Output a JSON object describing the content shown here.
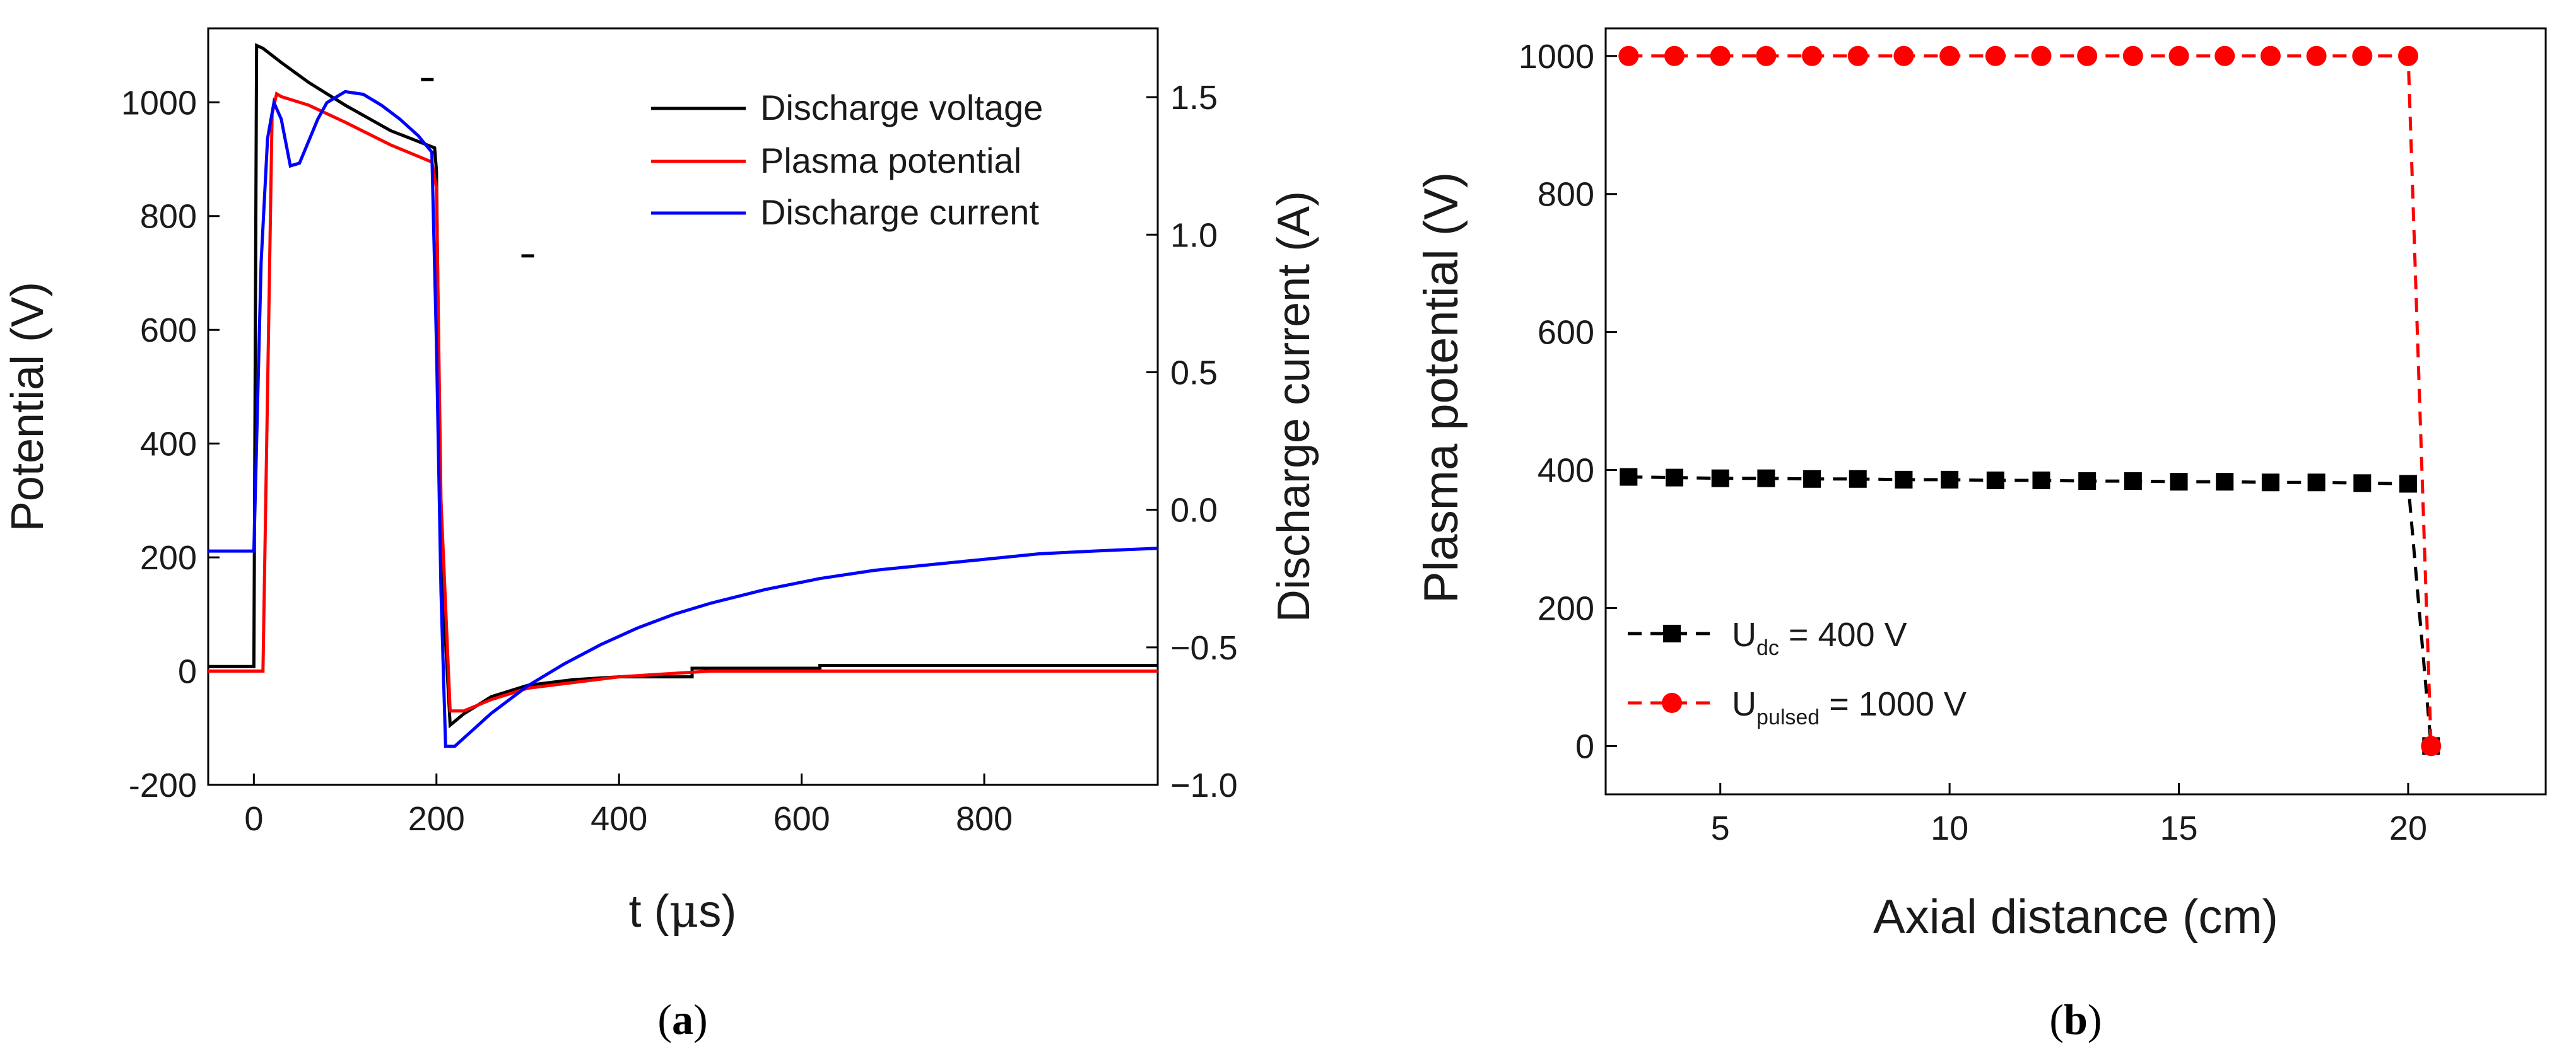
{
  "chart_data": [
    {
      "panel": "(a)",
      "type": "line",
      "xlabel_prefix": "t (",
      "xlabel_greek": "μ",
      "xlabel_suffix": "s)",
      "ylabel": "Potential (V)",
      "y2label": "Discharge current (A)",
      "xlim": [
        -50,
        990
      ],
      "ylim": [
        -200,
        1130
      ],
      "y2lim": [
        -1.0,
        1.75
      ],
      "x_ticks": [
        "0",
        "200",
        "400",
        "600",
        "800"
      ],
      "y_ticks": [
        "-200",
        "0",
        "200",
        "400",
        "600",
        "800",
        "1000"
      ],
      "y2_ticks": [
        "−1.0",
        "−0.5",
        "0.0",
        "0.5",
        "1.0",
        "1.5"
      ],
      "legend": [
        "Discharge voltage",
        "Plasma potential",
        "Discharge current"
      ],
      "legend_position": "top-right",
      "colors": [
        "#000000",
        "#ff0000",
        "#0000ff"
      ],
      "series": [
        {
          "name": "Discharge voltage",
          "axis": "left",
          "x": [
            -50,
            0,
            3,
            10,
            30,
            60,
            100,
            150,
            198,
            200,
            205,
            215,
            230,
            260,
            300,
            350,
            400,
            480,
            480,
            620,
            620,
            990
          ],
          "y": [
            8,
            8,
            1100,
            1095,
            1070,
            1035,
            995,
            950,
            920,
            880,
            200,
            -95,
            -75,
            -45,
            -25,
            -15,
            -10,
            -10,
            5,
            5,
            10,
            10
          ]
        },
        {
          "name": "Plasma potential",
          "axis": "left",
          "x": [
            -50,
            10,
            20,
            25,
            30,
            60,
            100,
            150,
            195,
            200,
            205,
            215,
            230,
            260,
            300,
            350,
            400,
            470,
            500,
            990
          ],
          "y": [
            0,
            0,
            980,
            1015,
            1010,
            995,
            965,
            925,
            895,
            850,
            300,
            -70,
            -70,
            -50,
            -30,
            -20,
            -10,
            -3,
            0,
            0
          ]
        },
        {
          "name": "Discharge current",
          "axis": "right",
          "x": [
            -50,
            0,
            8,
            15,
            22,
            30,
            40,
            50,
            60,
            70,
            80,
            100,
            120,
            140,
            160,
            180,
            195,
            200,
            205,
            210,
            220,
            240,
            260,
            280,
            300,
            340,
            380,
            420,
            460,
            500,
            560,
            620,
            680,
            740,
            800,
            860,
            920,
            990
          ],
          "y": [
            -0.15,
            -0.15,
            0.9,
            1.35,
            1.48,
            1.42,
            1.25,
            1.26,
            1.34,
            1.42,
            1.48,
            1.52,
            1.51,
            1.47,
            1.42,
            1.36,
            1.3,
            0.6,
            -0.3,
            -0.86,
            -0.86,
            -0.8,
            -0.74,
            -0.69,
            -0.64,
            -0.56,
            -0.49,
            -0.43,
            -0.38,
            -0.34,
            -0.29,
            -0.25,
            -0.22,
            -0.2,
            -0.18,
            -0.16,
            -0.15,
            -0.14
          ]
        }
      ],
      "stray_marks": [
        {
          "x": 190,
          "y": 1040
        },
        {
          "x": 300,
          "y": 730
        }
      ]
    },
    {
      "panel": "(b)",
      "type": "line",
      "xlabel": "Axial distance (cm)",
      "ylabel": "Plasma potential (V)",
      "xlim": [
        2.5,
        23
      ],
      "ylim": [
        -70,
        1040
      ],
      "x_ticks": [
        "5",
        "10",
        "15",
        "20"
      ],
      "y_ticks": [
        "0",
        "200",
        "400",
        "600",
        "800",
        "1000"
      ],
      "legend_position": "bottom-left",
      "series": [
        {
          "name": "U_dc = 400 V",
          "label_main": "U",
          "label_sub": "dc",
          "label_tail": " = 400 V",
          "color": "#000000",
          "marker": "square",
          "x": [
            3,
            4,
            5,
            6,
            7,
            8,
            9,
            10,
            11,
            12,
            13,
            14,
            15,
            16,
            17,
            18,
            19,
            20,
            20.5
          ],
          "y": [
            390,
            389,
            388,
            388,
            387,
            387,
            386,
            386,
            385,
            385,
            384,
            384,
            383,
            383,
            382,
            382,
            381,
            380,
            0
          ]
        },
        {
          "name": "U_pulsed = 1000 V",
          "label_main": "U",
          "label_sub": "pulsed",
          "label_tail": " = 1000 V",
          "color": "#ff0000",
          "marker": "circle",
          "x": [
            3,
            4,
            5,
            6,
            7,
            8,
            9,
            10,
            11,
            12,
            13,
            14,
            15,
            16,
            17,
            18,
            19,
            20,
            20.5
          ],
          "y": [
            1000,
            1000,
            1000,
            1000,
            1000,
            1000,
            1000,
            1000,
            1000,
            1000,
            1000,
            1000,
            1000,
            1000,
            1000,
            1000,
            1000,
            1000,
            0
          ]
        }
      ]
    }
  ],
  "captions": {
    "a": "a",
    "b": "b"
  }
}
